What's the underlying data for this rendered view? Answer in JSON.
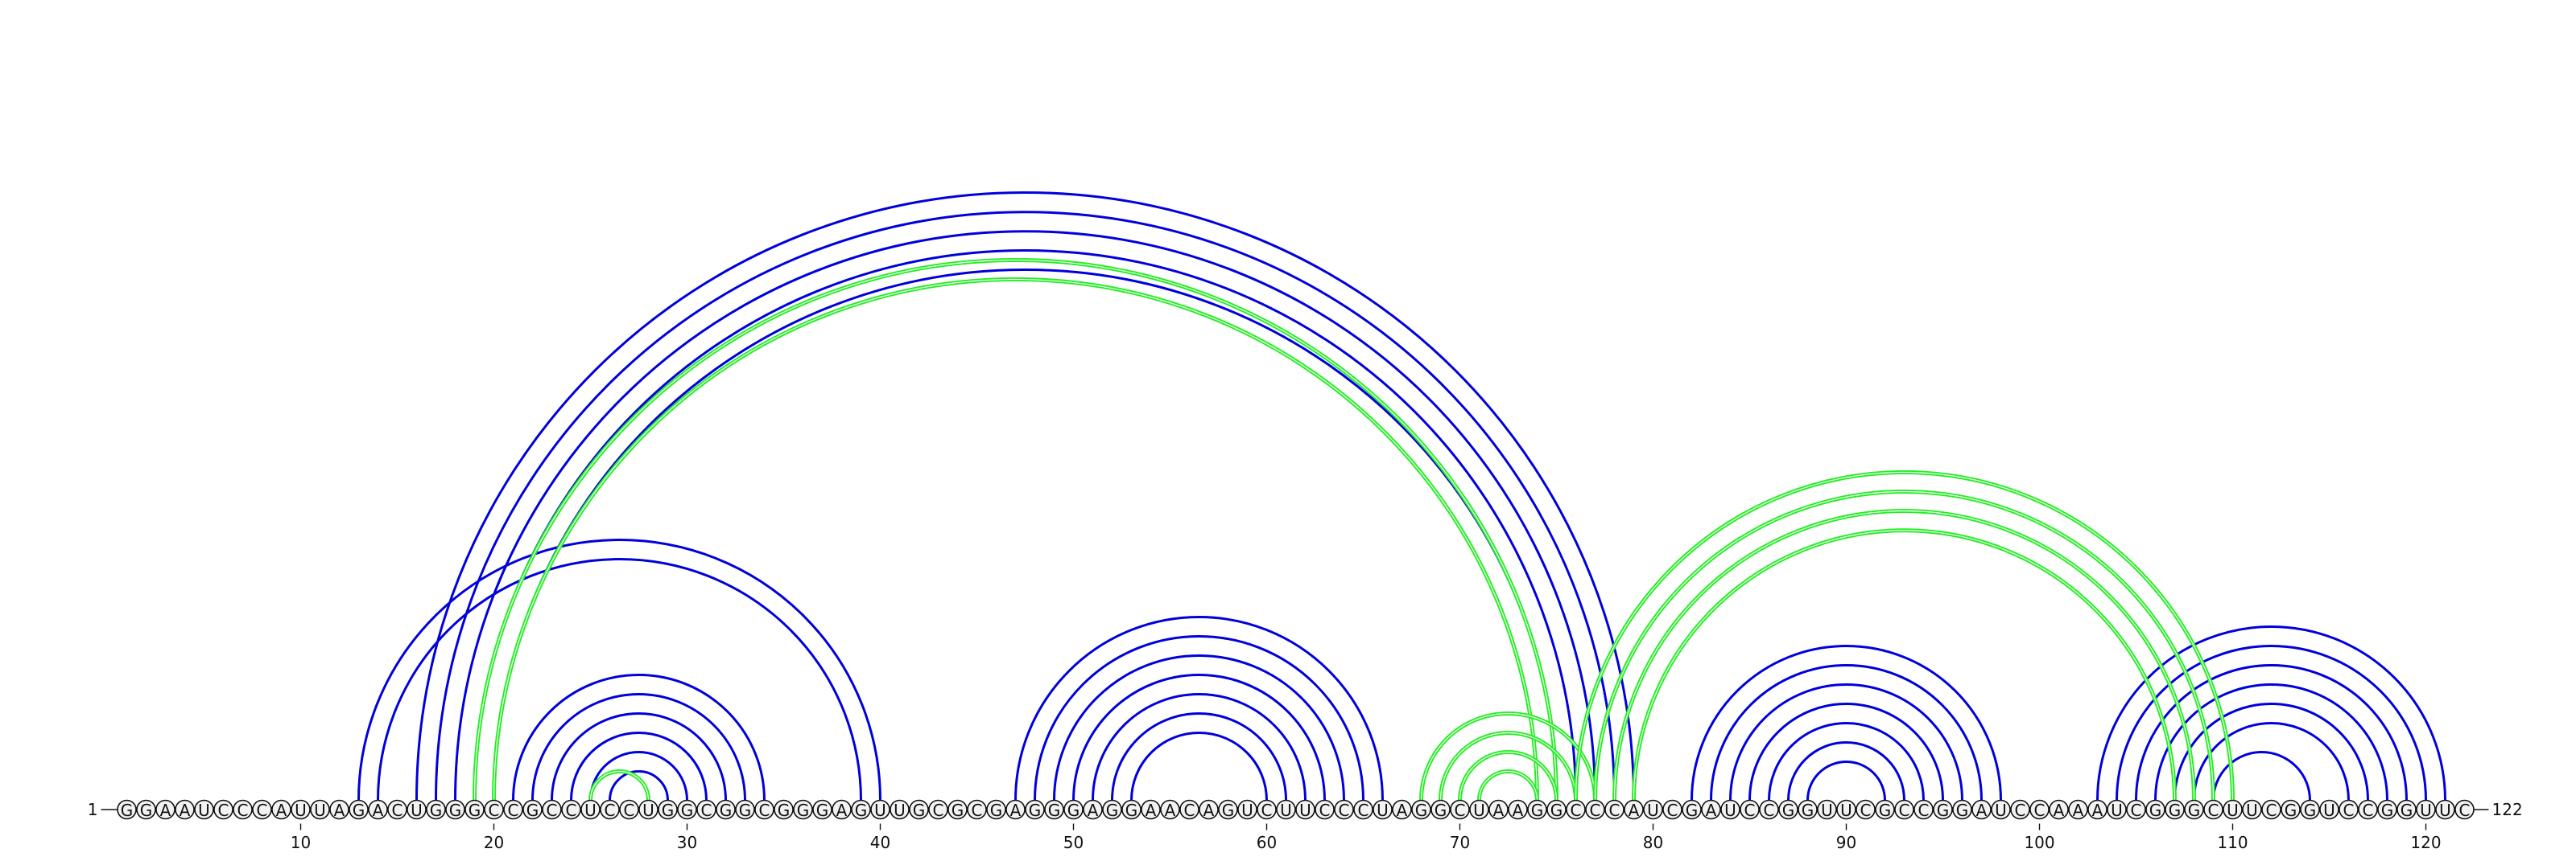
{
  "sequence": "GGAAUCCCAUUAGACUGGGCCGCCUCCUGGCGGCGGGAGUUGCGCGAGGGAGGAACAGUCUUCCCUAGGCUAAGGCCCAUCGAUCCGGUUCGCCGGAUCCAAAUCGGGCUUCGGUCCGGUUC",
  "start_label": "1",
  "end_label": "122",
  "tick_interval": 10,
  "colors": {
    "blue_structure": "#0000dd",
    "green_structure": "#22ee22",
    "nucleotide_outline": "#111111",
    "nucleotide_fill": "#f2f2f2"
  },
  "structures": [
    {
      "color_key": "blue_structure",
      "pairs": [
        [
          13,
          40
        ],
        [
          14,
          39
        ],
        [
          16,
          79
        ],
        [
          17,
          78
        ],
        [
          18,
          77
        ],
        [
          19,
          76
        ],
        [
          20,
          75
        ],
        [
          21,
          34
        ],
        [
          22,
          33
        ],
        [
          23,
          32
        ],
        [
          24,
          31
        ],
        [
          25,
          30
        ],
        [
          26,
          29
        ],
        [
          47,
          66
        ],
        [
          48,
          65
        ],
        [
          49,
          64
        ],
        [
          50,
          63
        ],
        [
          51,
          62
        ],
        [
          52,
          61
        ],
        [
          53,
          60
        ],
        [
          82,
          98
        ],
        [
          83,
          97
        ],
        [
          84,
          96
        ],
        [
          85,
          95
        ],
        [
          86,
          94
        ],
        [
          87,
          93
        ],
        [
          88,
          92
        ],
        [
          103,
          121
        ],
        [
          104,
          120
        ],
        [
          105,
          119
        ],
        [
          106,
          118
        ],
        [
          107,
          117
        ],
        [
          108,
          116
        ],
        [
          109,
          114
        ]
      ]
    },
    {
      "color_key": "green_structure",
      "pairs": [
        [
          19,
          75
        ],
        [
          20,
          74
        ],
        [
          25,
          28
        ],
        [
          68,
          77
        ],
        [
          69,
          76
        ],
        [
          70,
          75
        ],
        [
          71,
          74
        ],
        [
          76,
          110
        ],
        [
          77,
          109
        ],
        [
          78,
          108
        ],
        [
          79,
          107
        ]
      ]
    }
  ]
}
